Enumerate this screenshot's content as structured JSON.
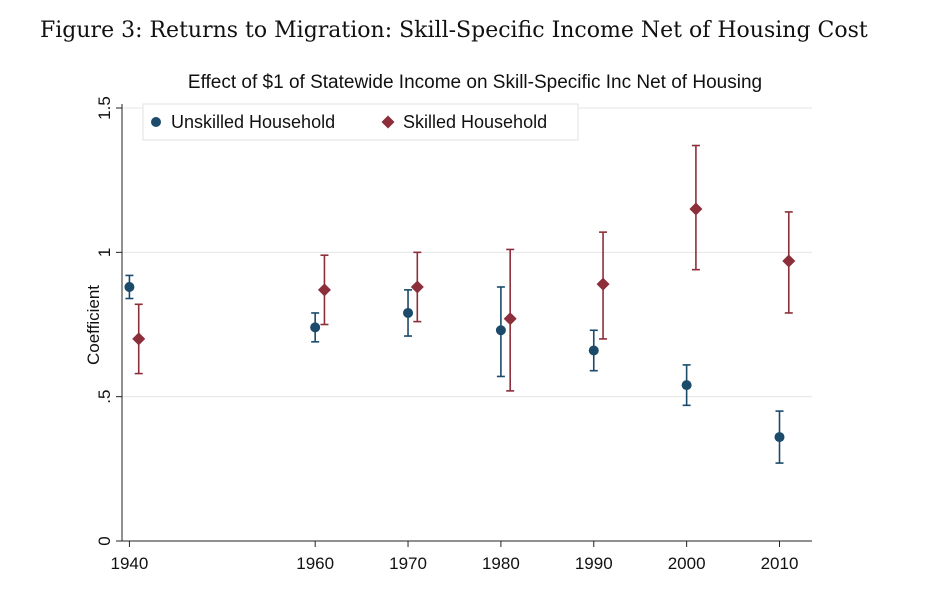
{
  "caption": "Figure 3: Returns to Migration: Skill-Specific Income Net of Housing Cost",
  "chart_data": {
    "type": "scatter",
    "title": "Effect of $1 of Statewide Income on Skill-Specific Inc Net of Housing",
    "xlabel": "",
    "ylabel": "Coefficient",
    "x_ticks": [
      1940,
      1960,
      1970,
      1980,
      1990,
      2000,
      2010
    ],
    "y_ticks": [
      0,
      0.5,
      1,
      1.5
    ],
    "y_tick_labels": [
      "0",
      ".5",
      "1",
      "1.5"
    ],
    "ylim": [
      0,
      1.5
    ],
    "grid": true,
    "legend_position": "top-left",
    "series": [
      {
        "name": "Unskilled Household",
        "marker": "circle",
        "color": "#1b4a6b",
        "points": [
          {
            "x": 1940,
            "y": 0.88,
            "lo": 0.84,
            "hi": 0.92
          },
          {
            "x": 1960,
            "y": 0.74,
            "lo": 0.69,
            "hi": 0.79
          },
          {
            "x": 1970,
            "y": 0.79,
            "lo": 0.71,
            "hi": 0.87
          },
          {
            "x": 1980,
            "y": 0.73,
            "lo": 0.57,
            "hi": 0.88
          },
          {
            "x": 1990,
            "y": 0.66,
            "lo": 0.59,
            "hi": 0.73
          },
          {
            "x": 2000,
            "y": 0.54,
            "lo": 0.47,
            "hi": 0.61
          },
          {
            "x": 2010,
            "y": 0.36,
            "lo": 0.27,
            "hi": 0.45
          }
        ]
      },
      {
        "name": "Skilled Household",
        "marker": "diamond",
        "color": "#8c2f3a",
        "points": [
          {
            "x": 1940,
            "y": 0.7,
            "lo": 0.58,
            "hi": 0.82
          },
          {
            "x": 1960,
            "y": 0.87,
            "lo": 0.75,
            "hi": 0.99
          },
          {
            "x": 1970,
            "y": 0.88,
            "lo": 0.76,
            "hi": 1.0
          },
          {
            "x": 1980,
            "y": 0.77,
            "lo": 0.52,
            "hi": 1.01
          },
          {
            "x": 1990,
            "y": 0.89,
            "lo": 0.7,
            "hi": 1.07
          },
          {
            "x": 2000,
            "y": 1.15,
            "lo": 0.94,
            "hi": 1.37
          },
          {
            "x": 2010,
            "y": 0.97,
            "lo": 0.79,
            "hi": 1.14
          }
        ]
      }
    ]
  }
}
